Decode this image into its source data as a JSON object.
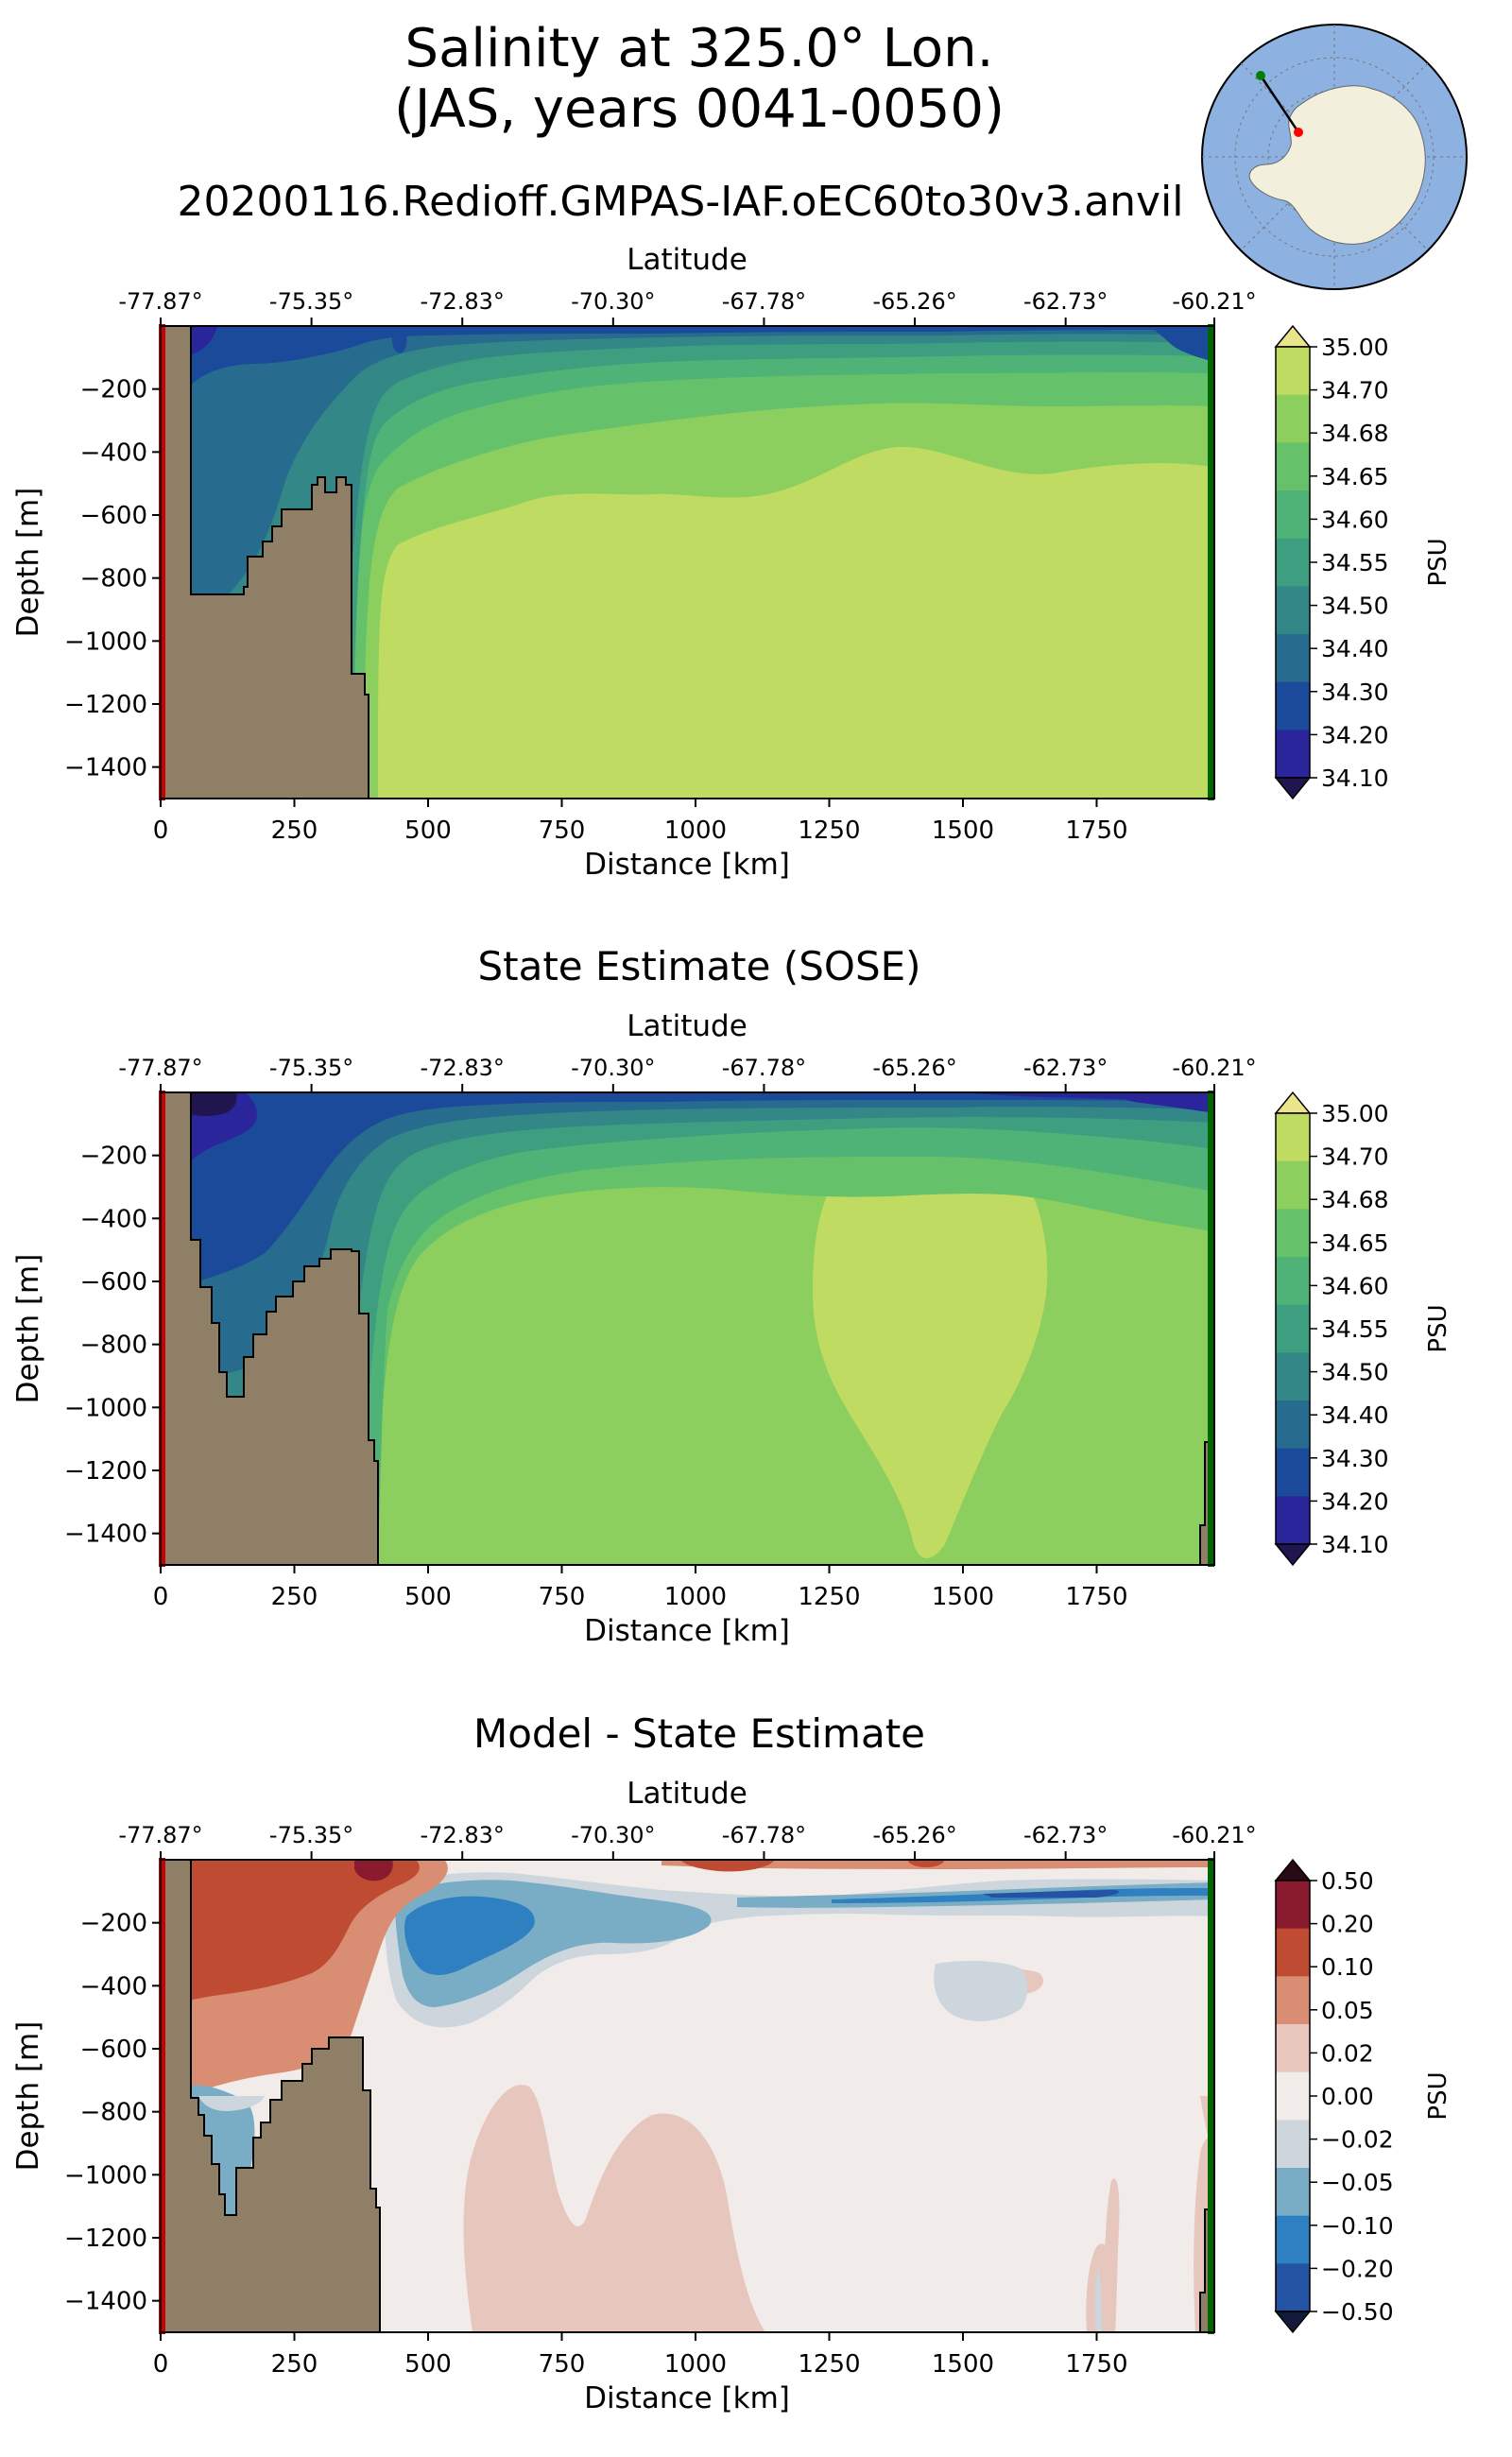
{
  "header": {
    "title_line1": "Salinity at 325.0° Lon.",
    "title_line2": "(JAS, years 0041-0050)",
    "run_name": "20200116.Redioff.GMPAS-IAF.oEC60to30v3.anvil"
  },
  "inset_map": {
    "description_icon": "antarctica-polar-map-icon",
    "start_marker_color": "#008000",
    "end_marker_color": "#ff0000",
    "ocean_color": "#8db1e0",
    "land_color": "#f2f0dc"
  },
  "colors": {
    "land": "#8e7f66",
    "start_line": "#cc0000",
    "end_line": "#006400"
  },
  "chart_data": [
    {
      "type": "contour",
      "panel": "model",
      "title": "",
      "xlabel": "Distance [km]",
      "ylabel": "Depth [m]",
      "top_xlabel": "Latitude",
      "xlim": [
        0,
        1970
      ],
      "ylim": [
        -1500,
        0
      ],
      "x_ticks": [
        "0",
        "250",
        "500",
        "750",
        "1000",
        "1250",
        "1500",
        "1750"
      ],
      "x_tick_values": [
        0,
        250,
        500,
        750,
        1000,
        1250,
        1500,
        1750
      ],
      "y_ticks": [
        "−200",
        "−400",
        "−600",
        "−800",
        "−1000",
        "−1200",
        "−1400"
      ],
      "y_tick_values": [
        -200,
        -400,
        -600,
        -800,
        -1000,
        -1200,
        -1400
      ],
      "lat_ticks": [
        "-77.87°",
        "-75.35°",
        "-72.83°",
        "-70.30°",
        "-67.78°",
        "-65.26°",
        "-62.73°",
        "-60.21°"
      ],
      "lat_tick_positions": [
        0,
        282,
        564,
        846,
        1128,
        1410,
        1692,
        1970
      ],
      "colorbar": {
        "label": "PSU",
        "levels": [
          "35.00",
          "34.70",
          "34.68",
          "34.65",
          "34.60",
          "34.55",
          "34.50",
          "34.40",
          "34.30",
          "34.20",
          "34.10"
        ],
        "colors": [
          "#eae58c",
          "#bfdb62",
          "#8ccf5e",
          "#66c26a",
          "#4fb276",
          "#3d9e80",
          "#338786",
          "#276c8e",
          "#1b4a9a",
          "#2b259c",
          "#21154f"
        ]
      }
    },
    {
      "type": "contour",
      "panel": "sose",
      "title": "State Estimate (SOSE)",
      "xlabel": "Distance [km]",
      "ylabel": "Depth [m]",
      "top_xlabel": "Latitude",
      "xlim": [
        0,
        1970
      ],
      "ylim": [
        -1500,
        0
      ],
      "x_ticks": [
        "0",
        "250",
        "500",
        "750",
        "1000",
        "1250",
        "1500",
        "1750"
      ],
      "x_tick_values": [
        0,
        250,
        500,
        750,
        1000,
        1250,
        1500,
        1750
      ],
      "y_ticks": [
        "−200",
        "−400",
        "−600",
        "−800",
        "−1000",
        "−1200",
        "−1400"
      ],
      "y_tick_values": [
        -200,
        -400,
        -600,
        -800,
        -1000,
        -1200,
        -1400
      ],
      "lat_ticks": [
        "-77.87°",
        "-75.35°",
        "-72.83°",
        "-70.30°",
        "-67.78°",
        "-65.26°",
        "-62.73°",
        "-60.21°"
      ],
      "lat_tick_positions": [
        0,
        282,
        564,
        846,
        1128,
        1410,
        1692,
        1970
      ],
      "colorbar": {
        "label": "PSU",
        "levels": [
          "35.00",
          "34.70",
          "34.68",
          "34.65",
          "34.60",
          "34.55",
          "34.50",
          "34.40",
          "34.30",
          "34.20",
          "34.10"
        ],
        "colors": [
          "#eae58c",
          "#bfdb62",
          "#8ccf5e",
          "#66c26a",
          "#4fb276",
          "#3d9e80",
          "#338786",
          "#276c8e",
          "#1b4a9a",
          "#2b259c",
          "#21154f"
        ]
      }
    },
    {
      "type": "contour",
      "panel": "diff",
      "title": "Model - State Estimate",
      "xlabel": "Distance [km]",
      "ylabel": "Depth [m]",
      "top_xlabel": "Latitude",
      "xlim": [
        0,
        1970
      ],
      "ylim": [
        -1500,
        0
      ],
      "x_ticks": [
        "0",
        "250",
        "500",
        "750",
        "1000",
        "1250",
        "1500",
        "1750"
      ],
      "x_tick_values": [
        0,
        250,
        500,
        750,
        1000,
        1250,
        1500,
        1750
      ],
      "y_ticks": [
        "−200",
        "−400",
        "−600",
        "−800",
        "−1000",
        "−1200",
        "−1400"
      ],
      "y_tick_values": [
        -200,
        -400,
        -600,
        -800,
        -1000,
        -1200,
        -1400
      ],
      "lat_ticks": [
        "-77.87°",
        "-75.35°",
        "-72.83°",
        "-70.30°",
        "-67.78°",
        "-65.26°",
        "-62.73°",
        "-60.21°"
      ],
      "lat_tick_positions": [
        0,
        282,
        564,
        846,
        1128,
        1410,
        1692,
        1970
      ],
      "colorbar": {
        "label": "PSU",
        "levels": [
          "0.50",
          "0.20",
          "0.10",
          "0.05",
          "0.02",
          "0.00",
          "−0.02",
          "−0.05",
          "−0.10",
          "−0.20",
          "−0.50"
        ],
        "colors": [
          "#2a0a16",
          "#8a1a2e",
          "#bf4c32",
          "#d98d72",
          "#e6c6bd",
          "#f1ebea",
          "#cdd6dd",
          "#79acc5",
          "#2f80c0",
          "#2553a3",
          "#141a3a"
        ]
      }
    }
  ]
}
